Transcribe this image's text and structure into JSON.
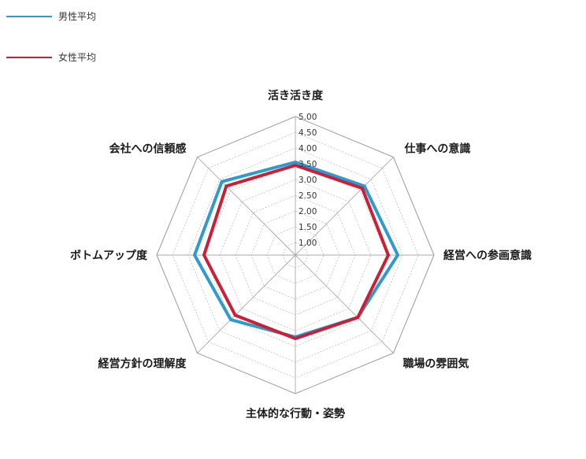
{
  "chart_data": {
    "type": "radar",
    "categories": [
      "活き活き度",
      "仕事への意識",
      "経営への参画意識",
      "職場の雰囲気",
      "主体的な行動・姿勢",
      "経営方針の理解度",
      "ボトムアップ度",
      "会社への信頼感"
    ],
    "ticks": [
      "1.00",
      "1.50",
      "2.00",
      "2.50",
      "3.00",
      "3.50",
      "4.00",
      "4.50",
      "5.00"
    ],
    "range": [
      0.6,
      5.0
    ],
    "series": [
      {
        "name": "男性平均",
        "color": "#2e9bd0",
        "values": [
          3.55,
          3.7,
          3.85,
          3.4,
          3.2,
          3.5,
          3.8,
          3.9
        ]
      },
      {
        "name": "女性平均",
        "color": "#cc1f36",
        "values": [
          3.45,
          3.6,
          3.55,
          3.4,
          3.25,
          3.3,
          3.5,
          3.7
        ]
      }
    ],
    "grid": true,
    "legend_position": "top-left"
  }
}
